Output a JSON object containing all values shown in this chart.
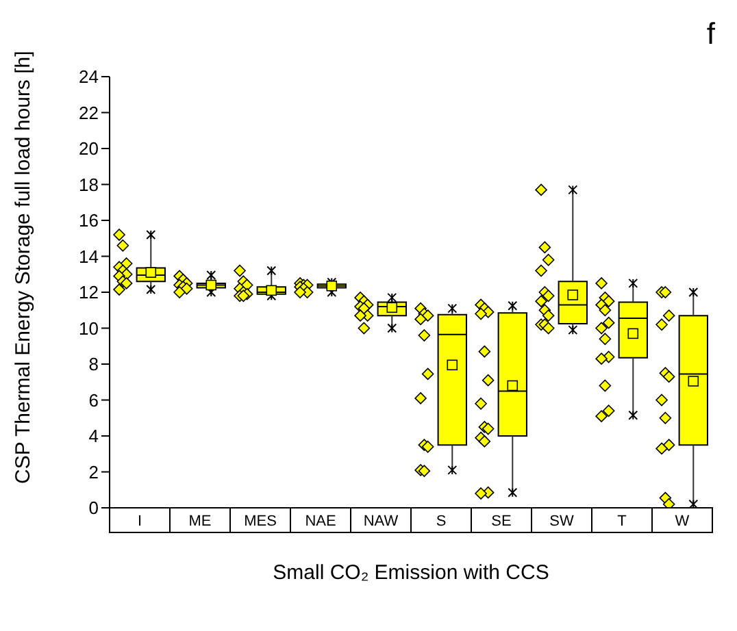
{
  "chart_data": {
    "type": "box",
    "xlabel": "Small CO₂ Emission with CCS",
    "ylabel": "CSP Thermal Energy Storage full load hours [h]",
    "annotations": [
      "f"
    ],
    "categories": [
      "I",
      "ME",
      "MES",
      "NAE",
      "NAW",
      "S",
      "SE",
      "SW",
      "T",
      "W"
    ],
    "color": "#ffff00",
    "boxes": [
      {
        "low": 12.15,
        "q1": 12.6,
        "median": 12.95,
        "q3": 13.35,
        "high": 15.2,
        "mean": 13.1
      },
      {
        "low": 12.0,
        "q1": 12.25,
        "median": 12.4,
        "q3": 12.5,
        "high": 12.95,
        "mean": 12.4
      },
      {
        "low": 11.8,
        "q1": 11.9,
        "median": 12.0,
        "q3": 12.3,
        "high": 13.2,
        "mean": 12.1
      },
      {
        "low": 12.0,
        "q1": 12.25,
        "median": 12.35,
        "q3": 12.45,
        "high": 12.55,
        "mean": 12.35
      },
      {
        "low": 10.0,
        "q1": 10.7,
        "median": 11.2,
        "q3": 11.45,
        "high": 11.7,
        "mean": 11.15
      },
      {
        "low": 2.1,
        "q1": 3.5,
        "median": 9.65,
        "q3": 10.75,
        "high": 11.1,
        "mean": 7.95
      },
      {
        "low": 0.85,
        "q1": 4.0,
        "median": 6.5,
        "q3": 10.85,
        "high": 11.25,
        "mean": 6.8
      },
      {
        "low": 9.9,
        "q1": 10.25,
        "median": 11.3,
        "q3": 12.6,
        "high": 17.7,
        "mean": 11.85
      },
      {
        "low": 5.15,
        "q1": 8.35,
        "median": 10.55,
        "q3": 11.45,
        "high": 12.5,
        "mean": 9.7
      },
      {
        "low": 0.2,
        "q1": 3.5,
        "median": 7.45,
        "q3": 10.7,
        "high": 12.0,
        "mean": 7.05
      }
    ],
    "series": [
      {
        "type": "scatter",
        "color": "#ffff00",
        "marker": "diamond",
        "x": [
          "I",
          "I",
          "I",
          "I",
          "I",
          "I",
          "I",
          "I",
          "I",
          "I",
          "ME",
          "ME",
          "ME",
          "ME",
          "ME",
          "ME",
          "ME",
          "MES",
          "MES",
          "MES",
          "MES",
          "MES",
          "MES",
          "MES",
          "MES",
          "NAE",
          "NAE",
          "NAE",
          "NAE",
          "NAE",
          "NAE",
          "NAE",
          "NAW",
          "NAW",
          "NAW",
          "NAW",
          "NAW",
          "NAW",
          "NAW",
          "NAW",
          "S",
          "S",
          "S",
          "S",
          "S",
          "S",
          "S",
          "S",
          "S",
          "S",
          "S",
          "SE",
          "SE",
          "SE",
          "SE",
          "SE",
          "SE",
          "SE",
          "SE",
          "SE",
          "SE",
          "SE",
          "SE",
          "SE",
          "SW",
          "SW",
          "SW",
          "SW",
          "SW",
          "SW",
          "SW",
          "SW",
          "SW",
          "SW",
          "SW",
          "SW",
          "T",
          "T",
          "T",
          "T",
          "T",
          "T",
          "T",
          "T",
          "T",
          "T",
          "T",
          "T",
          "T",
          "W",
          "W",
          "W",
          "W",
          "W",
          "W",
          "W",
          "W",
          "W",
          "W",
          "W",
          "W"
        ],
        "values": [
          15.2,
          14.6,
          13.6,
          13.4,
          13.2,
          13.0,
          12.9,
          12.6,
          12.5,
          12.15,
          12.9,
          12.7,
          12.5,
          12.4,
          12.3,
          12.2,
          12.0,
          13.2,
          12.6,
          12.4,
          12.2,
          12.0,
          11.9,
          11.8,
          11.8,
          12.5,
          12.4,
          12.4,
          12.3,
          12.2,
          12.0,
          12.0,
          11.7,
          11.5,
          11.3,
          11.2,
          11.1,
          10.7,
          10.7,
          10.0,
          11.1,
          10.8,
          10.7,
          10.5,
          9.6,
          7.45,
          6.1,
          3.5,
          3.4,
          2.1,
          2.05,
          11.3,
          11.1,
          10.9,
          10.8,
          8.7,
          7.1,
          5.8,
          4.5,
          4.4,
          3.9,
          3.7,
          0.85,
          0.8,
          17.7,
          14.5,
          13.8,
          13.2,
          12.0,
          11.8,
          11.5,
          11.0,
          10.7,
          10.2,
          10.2,
          10.0,
          12.5,
          11.7,
          11.5,
          11.3,
          11.0,
          10.3,
          10.0,
          9.4,
          8.4,
          8.3,
          6.8,
          5.4,
          5.1,
          12.0,
          12.0,
          10.7,
          10.2,
          7.5,
          7.3,
          6.0,
          5.0,
          3.5,
          3.3,
          0.55,
          0.2
        ]
      }
    ],
    "ylim": [
      0,
      24
    ],
    "yticks": [
      0,
      2,
      4,
      6,
      8,
      10,
      12,
      14,
      16,
      18,
      20,
      22,
      24
    ],
    "grid": false
  }
}
